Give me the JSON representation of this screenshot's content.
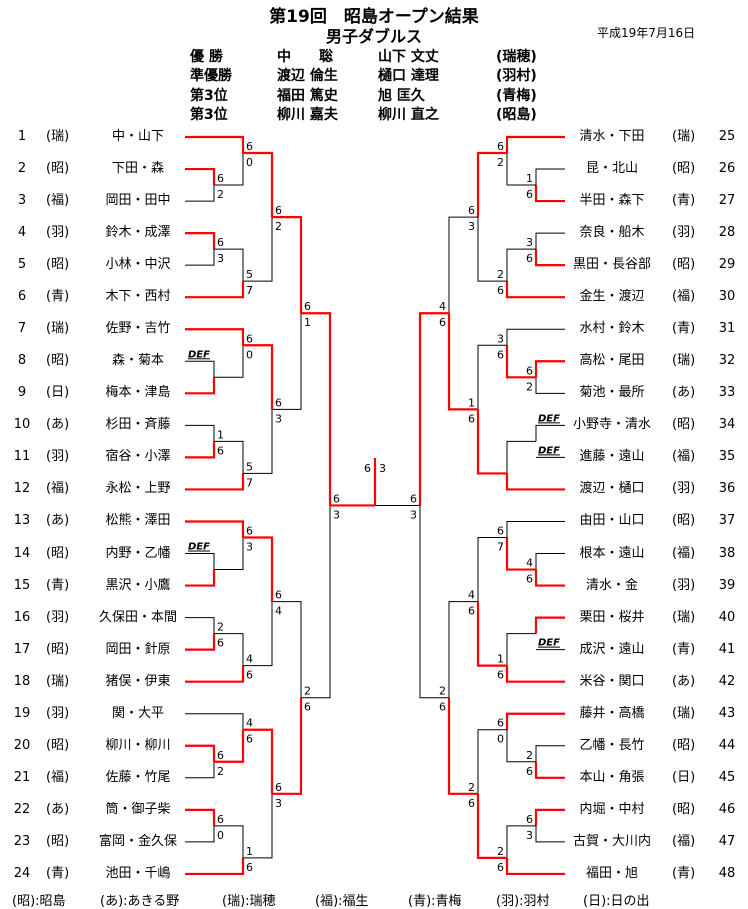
{
  "header": {
    "title": "第19回　昭島オープン結果",
    "subtitle": "男子ダブルス",
    "date": "平成19年7月16日"
  },
  "results": [
    {
      "rank": "優 勝",
      "player1": "中　　聡",
      "player2": "山下 文丈",
      "club": "(瑞穂)"
    },
    {
      "rank": "準優勝",
      "player1": "渡辺 倫生",
      "player2": "樋口 達理",
      "club": "(羽村)"
    },
    {
      "rank": "第3位",
      "player1": "福田 篤史",
      "player2": "旭 匡久",
      "club": "(青梅)"
    },
    {
      "rank": "第3位",
      "player1": "柳川 嘉夫",
      "player2": "柳川 直之",
      "club": "(昭島)"
    }
  ],
  "colors": {
    "winner_line": "#ff0000",
    "loser_line": "#000000"
  },
  "entries_left": [
    {
      "no": "1",
      "club": "(瑞)",
      "names": "中・山下"
    },
    {
      "no": "2",
      "club": "(昭)",
      "names": "下田・森"
    },
    {
      "no": "3",
      "club": "(福)",
      "names": "岡田・田中"
    },
    {
      "no": "4",
      "club": "(羽)",
      "names": "鈴木・成澤"
    },
    {
      "no": "5",
      "club": "(昭)",
      "names": "小林・中沢"
    },
    {
      "no": "6",
      "club": "(青)",
      "names": "木下・西村"
    },
    {
      "no": "7",
      "club": "(瑞)",
      "names": "佐野・吉竹"
    },
    {
      "no": "8",
      "club": "(昭)",
      "names": "森・菊本",
      "def": "DEF"
    },
    {
      "no": "9",
      "club": "(日)",
      "names": "梅本・津島"
    },
    {
      "no": "10",
      "club": "(あ)",
      "names": "杉田・斉藤"
    },
    {
      "no": "11",
      "club": "(羽)",
      "names": "宿谷・小澤"
    },
    {
      "no": "12",
      "club": "(福)",
      "names": "永松・上野"
    },
    {
      "no": "13",
      "club": "(あ)",
      "names": "松熊・澤田"
    },
    {
      "no": "14",
      "club": "(昭)",
      "names": "内野・乙幡",
      "def": "DEF"
    },
    {
      "no": "15",
      "club": "(青)",
      "names": "黒沢・小鷹"
    },
    {
      "no": "16",
      "club": "(羽)",
      "names": "久保田・本間"
    },
    {
      "no": "17",
      "club": "(昭)",
      "names": "岡田・針原"
    },
    {
      "no": "18",
      "club": "(瑞)",
      "names": "猪俣・伊東"
    },
    {
      "no": "19",
      "club": "(羽)",
      "names": "関・大平"
    },
    {
      "no": "20",
      "club": "(昭)",
      "names": "柳川・柳川"
    },
    {
      "no": "21",
      "club": "(福)",
      "names": "佐藤・竹尾"
    },
    {
      "no": "22",
      "club": "(あ)",
      "names": "筒・御子柴"
    },
    {
      "no": "23",
      "club": "(昭)",
      "names": "富岡・金久保"
    },
    {
      "no": "24",
      "club": "(青)",
      "names": "池田・千嶋"
    }
  ],
  "entries_right": [
    {
      "no": "25",
      "club": "(瑞)",
      "names": "清水・下田"
    },
    {
      "no": "26",
      "club": "(昭)",
      "names": "昆・北山"
    },
    {
      "no": "27",
      "club": "(青)",
      "names": "半田・森下"
    },
    {
      "no": "28",
      "club": "(羽)",
      "names": "奈良・船木"
    },
    {
      "no": "29",
      "club": "(昭)",
      "names": "黒田・長谷部"
    },
    {
      "no": "30",
      "club": "(福)",
      "names": "金生・渡辺"
    },
    {
      "no": "31",
      "club": "(青)",
      "names": "水村・鈴木"
    },
    {
      "no": "32",
      "club": "(瑞)",
      "names": "高松・尾田"
    },
    {
      "no": "33",
      "club": "(あ)",
      "names": "菊池・最所"
    },
    {
      "no": "34",
      "club": "(昭)",
      "names": "小野寺・清水",
      "def": "DEF"
    },
    {
      "no": "35",
      "club": "(福)",
      "names": "進藤・遠山",
      "def": "DEF",
      "unlinked": true
    },
    {
      "no": "36",
      "club": "(羽)",
      "names": "渡辺・樋口"
    },
    {
      "no": "37",
      "club": "(昭)",
      "names": "由田・山口"
    },
    {
      "no": "38",
      "club": "(福)",
      "names": "根本・遠山"
    },
    {
      "no": "39",
      "club": "(羽)",
      "names": "清水・金"
    },
    {
      "no": "40",
      "club": "(瑞)",
      "names": "栗田・桜井"
    },
    {
      "no": "41",
      "club": "(青)",
      "names": "成沢・遠山",
      "def": "DEF",
      "unlinked": true
    },
    {
      "no": "42",
      "club": "(あ)",
      "names": "米谷・関口"
    },
    {
      "no": "43",
      "club": "(瑞)",
      "names": "藤井・高橋"
    },
    {
      "no": "44",
      "club": "(昭)",
      "names": "乙幡・長竹"
    },
    {
      "no": "45",
      "club": "(日)",
      "names": "本山・角張"
    },
    {
      "no": "46",
      "club": "(昭)",
      "names": "内堀・中村"
    },
    {
      "no": "47",
      "club": "(福)",
      "names": "古賀・大川内"
    },
    {
      "no": "48",
      "club": "(青)",
      "names": "福田・旭"
    }
  ],
  "blocks_left": [
    {
      "pairA": {
        "top": "6",
        "bottom": "2",
        "winner": "top"
      },
      "A": {
        "top": "6",
        "bottom": "0",
        "winner": "top"
      },
      "pairB": {
        "top": "6",
        "bottom": "3",
        "winner": "top"
      },
      "B": {
        "top": "5",
        "bottom": "7",
        "winner": "bottom"
      },
      "block": {
        "top": "6",
        "bottom": "2",
        "winner": "top"
      }
    },
    {
      "pairA": {
        "top": "",
        "bottom": "",
        "winner": "bottom"
      },
      "A": {
        "top": "6",
        "bottom": "0",
        "winner": "top"
      },
      "pairB": {
        "top": "1",
        "bottom": "6",
        "winner": "bottom"
      },
      "B": {
        "top": "5",
        "bottom": "7",
        "winner": "bottom"
      },
      "block": {
        "top": "6",
        "bottom": "3",
        "winner": "top"
      }
    },
    {
      "pairA": {
        "top": "",
        "bottom": "",
        "winner": "bottom"
      },
      "A": {
        "top": "6",
        "bottom": "3",
        "winner": "top"
      },
      "pairB": {
        "top": "2",
        "bottom": "6",
        "winner": "bottom"
      },
      "B": {
        "top": "4",
        "bottom": "6",
        "winner": "bottom"
      },
      "block": {
        "top": "6",
        "bottom": "4",
        "winner": "top"
      }
    },
    {
      "pairA": {
        "top": "6",
        "bottom": "2",
        "winner": "top"
      },
      "A": {
        "top": "4",
        "bottom": "6",
        "winner": "bottom"
      },
      "pairB": {
        "top": "6",
        "bottom": "0",
        "winner": "top"
      },
      "B": {
        "top": "1",
        "bottom": "6",
        "winner": "bottom"
      },
      "block": {
        "top": "6",
        "bottom": "3",
        "winner": "top"
      }
    }
  ],
  "quarters_left": [
    {
      "top": "6",
      "bottom": "1",
      "winner": "top"
    },
    {
      "top": "2",
      "bottom": "6",
      "winner": "bottom"
    }
  ],
  "semi_left": {
    "top": "6",
    "bottom": "3",
    "winner": "top"
  },
  "blocks_right": [
    {
      "pairA": {
        "top": "1",
        "bottom": "6",
        "winner": "bottom"
      },
      "A": {
        "top": "6",
        "bottom": "2",
        "winner": "top"
      },
      "pairB": {
        "top": "3",
        "bottom": "6",
        "winner": "bottom"
      },
      "B": {
        "top": "2",
        "bottom": "6",
        "winner": "bottom"
      },
      "block": {
        "top": "6",
        "bottom": "3",
        "winner": "top"
      }
    },
    {
      "pairA": {
        "top": "6",
        "bottom": "2",
        "winner": "top"
      },
      "A": {
        "top": "3",
        "bottom": "6",
        "winner": "bottom"
      },
      "pairB": {
        "top": "",
        "bottom": "",
        "winner": "none"
      },
      "B": {
        "top": "",
        "bottom": "",
        "winner": "bottom"
      },
      "block": {
        "top": "1",
        "bottom": "6",
        "winner": "bottom"
      }
    },
    {
      "pairA": {
        "top": "4",
        "bottom": "6",
        "winner": "bottom"
      },
      "A": {
        "top": "6",
        "bottom": "7",
        "winner": "bottom"
      },
      "pairB": {
        "top": "",
        "bottom": "",
        "winner": "top"
      },
      "B": {
        "top": "1",
        "bottom": "6",
        "winner": "bottom"
      },
      "block": {
        "top": "4",
        "bottom": "6",
        "winner": "bottom"
      }
    },
    {
      "pairA": {
        "top": "2",
        "bottom": "6",
        "winner": "bottom"
      },
      "A": {
        "top": "6",
        "bottom": "0",
        "winner": "top"
      },
      "pairB": {
        "top": "6",
        "bottom": "3",
        "winner": "top"
      },
      "B": {
        "top": "2",
        "bottom": "6",
        "winner": "bottom"
      },
      "block": {
        "top": "2",
        "bottom": "6",
        "winner": "bottom"
      }
    }
  ],
  "quarters_right": [
    {
      "top": "4",
      "bottom": "6",
      "winner": "bottom"
    },
    {
      "top": "2",
      "bottom": "6",
      "winner": "bottom"
    }
  ],
  "semi_right": {
    "top": "6",
    "bottom": "3",
    "winner": "top"
  },
  "final": {
    "left": "6",
    "right": "3",
    "winner": "left"
  },
  "legend": [
    "(昭):昭島",
    "(あ):あきる野",
    "(瑞):瑞穂",
    "(福):福生",
    "(青):青梅",
    "(羽):羽村",
    "(日):日の出"
  ]
}
